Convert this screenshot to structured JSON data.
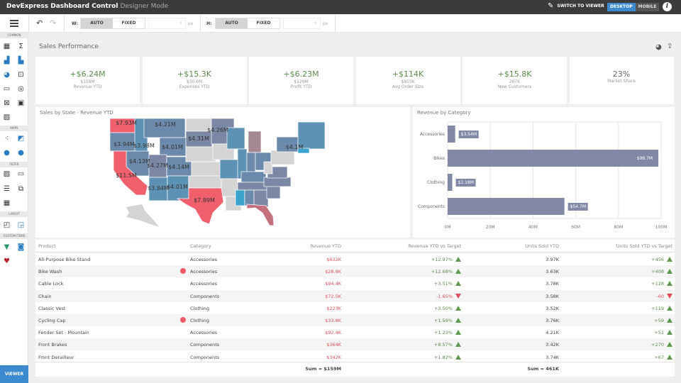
{
  "app": {
    "title": "DevExpress Dashboard Control",
    "mode": "Designer Mode",
    "switch_label": "SWITCH TO VIEWER",
    "layout_options": [
      "DESKTOP",
      "MOBILE"
    ],
    "selected_layout": "DESKTOP",
    "info_label": "i"
  },
  "toolbar": {
    "width_label": "W:",
    "height_label": "H:",
    "auto": "AUTO",
    "fixed": "FIXED",
    "unit": "px",
    "width_mode": "AUTO",
    "height_mode": "AUTO"
  },
  "sidebar": {
    "sections": [
      "COMMON",
      "MAPS",
      "FILTER",
      "LAYOUT",
      "CUSTOM ITEMS"
    ],
    "viewer_label": "VIEWER"
  },
  "dashboard": {
    "title": "Sales Performance"
  },
  "kpis": [
    {
      "delta": "+$6.24M",
      "value": "$159M",
      "label": "Revenue YTD"
    },
    {
      "delta": "+$15.3K",
      "value": "$30.6M",
      "label": "Expenses YTD"
    },
    {
      "delta": "+$6.23M",
      "value": "$129M",
      "label": "Profit YTD"
    },
    {
      "delta": "+$114K",
      "value": "$955K",
      "label": "Avg Order Size"
    },
    {
      "delta": "+$15.8K",
      "value": "207K",
      "label": "New Customers"
    },
    {
      "delta": "23%",
      "value": "",
      "label": "Market Share"
    }
  ],
  "map": {
    "title": "Sales by State - Revenue YTD",
    "labels": [
      "$7.93M",
      "$4.21M",
      "$4.26M",
      "$3.94M",
      "$3.98M",
      "$4.01M",
      "$4.31M",
      "$4.1M",
      "$4.13M",
      "$4.27M",
      "$4.14M",
      "$11.5M",
      "$3.84M",
      "$4.01M",
      "$7.89M"
    ]
  },
  "chart_data": {
    "type": "bar",
    "orientation": "horizontal",
    "title": "Revenue by Category",
    "categories": [
      "Accessories",
      "Bikes",
      "Clothing",
      "Components"
    ],
    "values": [
      3.54,
      98.7,
      2.18,
      54.7
    ],
    "data_labels": [
      "$3.54M",
      "$98.7M",
      "$2.18M",
      "$54.7M"
    ],
    "xlim": [
      0,
      100
    ],
    "x_ticks": [
      "0M",
      "20M",
      "40M",
      "60M",
      "80M",
      "100M"
    ],
    "grid": true,
    "color": "#8189a6"
  },
  "table": {
    "headers": [
      "Product",
      "Category",
      "Revenue YTD",
      "Revenue YTD vs Target",
      "Units Sold YTD",
      "Units Sold YTD vs Target"
    ],
    "rows": [
      {
        "product": "All-Purpose Bike Stand",
        "flag": false,
        "category": "Accessories",
        "revenue": "$632K",
        "rev_vs": "+12.97%",
        "rev_dir": "up",
        "units": "3.97K",
        "units_vs": "+456",
        "units_dir": "up"
      },
      {
        "product": "Bike Wash",
        "flag": true,
        "category": "Accessories",
        "revenue": "$28.8K",
        "rev_vs": "+12.68%",
        "rev_dir": "up",
        "units": "3.63K",
        "units_vs": "+408",
        "units_dir": "up"
      },
      {
        "product": "Cable Lock",
        "flag": false,
        "category": "Accessories",
        "revenue": "$94.4K",
        "rev_vs": "+3.51%",
        "rev_dir": "up",
        "units": "3.78K",
        "units_vs": "+128",
        "units_dir": "up"
      },
      {
        "product": "Chain",
        "flag": false,
        "category": "Components",
        "revenue": "$72.5K",
        "rev_vs": "-1.65%",
        "rev_dir": "down",
        "units": "3.58K",
        "units_vs": "-60",
        "units_dir": "down"
      },
      {
        "product": "Classic Vest",
        "flag": false,
        "category": "Clothing",
        "revenue": "$223K",
        "rev_vs": "+3.50%",
        "rev_dir": "up",
        "units": "3.52K",
        "units_vs": "+119",
        "units_dir": "up"
      },
      {
        "product": "Cycling Cap",
        "flag": true,
        "category": "Clothing",
        "revenue": "$33.8K",
        "rev_vs": "+1.59%",
        "rev_dir": "up",
        "units": "3.76K",
        "units_vs": "+59",
        "units_dir": "up"
      },
      {
        "product": "Fender Set - Mountain",
        "flag": false,
        "category": "Accessories",
        "revenue": "$92.4K",
        "rev_vs": "+1.23%",
        "rev_dir": "up",
        "units": "4.21K",
        "units_vs": "+51",
        "units_dir": "up"
      },
      {
        "product": "Front Brakes",
        "flag": false,
        "category": "Components",
        "revenue": "$364K",
        "rev_vs": "+8.57%",
        "rev_dir": "up",
        "units": "3.42K",
        "units_vs": "+270",
        "units_dir": "up"
      },
      {
        "product": "Front Derailleur",
        "flag": false,
        "category": "Components",
        "revenue": "$342K",
        "rev_vs": "+1.82%",
        "rev_dir": "up",
        "units": "3.74K",
        "units_vs": "+67",
        "units_dir": "up"
      }
    ],
    "totals": {
      "revenue": "Sum = $159M",
      "units": "Sum = 461K"
    }
  },
  "colors": {
    "accent": "#3d8ad0",
    "positive": "#5e8a4e",
    "negative": "#e05060",
    "highlight": "#f05a68"
  }
}
